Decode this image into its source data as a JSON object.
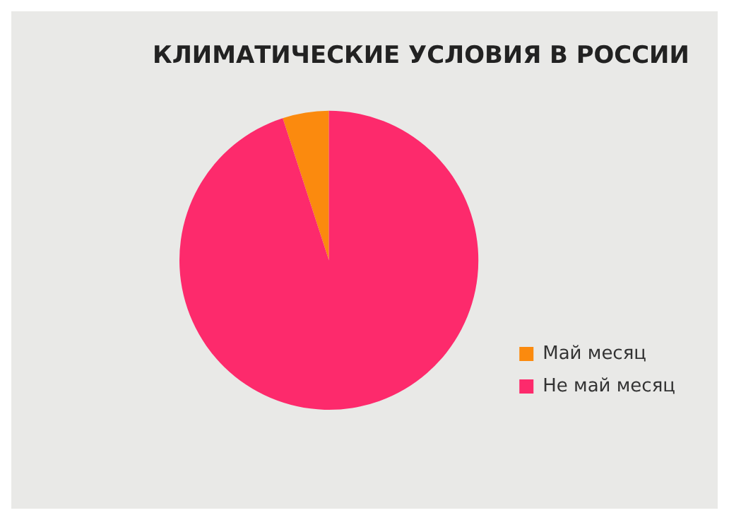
{
  "chart_data": {
    "type": "pie",
    "title": "КЛИМАТИЧЕСКИЕ УСЛОВИЯ В РОССИИ",
    "categories": [
      "Май месяц",
      "Не май месяц"
    ],
    "values": [
      5,
      95
    ],
    "colors": [
      "#fb8a0e",
      "#fd2a6c"
    ],
    "legend": "bottom right"
  }
}
